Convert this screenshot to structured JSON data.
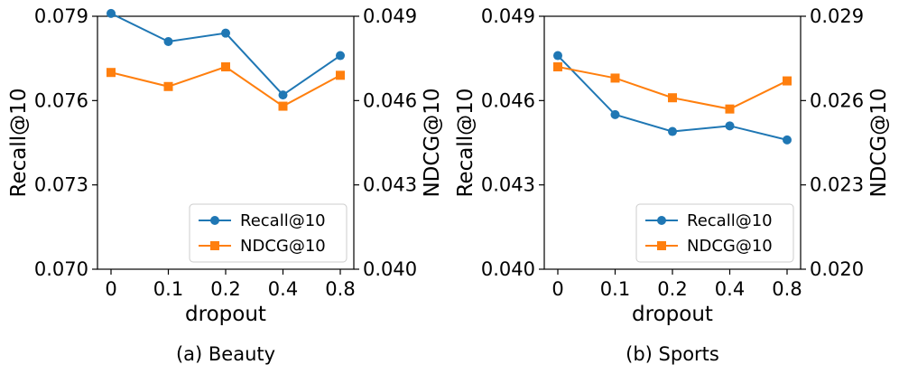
{
  "chart_data": [
    {
      "type": "line",
      "caption": "(a) Beauty",
      "xlabel": "dropout",
      "ylabel_left": "Recall@10",
      "ylabel_right": "NDCG@10",
      "categories": [
        "0",
        "0.1",
        "0.2",
        "0.4",
        "0.8"
      ],
      "ylim_left": [
        0.07,
        0.079
      ],
      "yticks_left": [
        "0.070",
        "0.073",
        "0.076",
        "0.079"
      ],
      "ylim_right": [
        0.04,
        0.049
      ],
      "yticks_right": [
        "0.040",
        "0.043",
        "0.046",
        "0.049"
      ],
      "series": [
        {
          "name": "Recall@10",
          "axis": "left",
          "marker": "circle",
          "color": "#1f77b4",
          "values": [
            0.0791,
            0.0781,
            0.0784,
            0.0762,
            0.0776
          ]
        },
        {
          "name": "NDCG@10",
          "axis": "right",
          "marker": "square",
          "color": "#ff7f0e",
          "values": [
            0.047,
            0.0465,
            0.0472,
            0.0458,
            0.0469
          ]
        }
      ],
      "legend": "bottom-right"
    },
    {
      "type": "line",
      "caption": "(b) Sports",
      "xlabel": "dropout",
      "ylabel_left": "Recall@10",
      "ylabel_right": "NDCG@10",
      "categories": [
        "0",
        "0.1",
        "0.2",
        "0.4",
        "0.8"
      ],
      "ylim_left": [
        0.04,
        0.049
      ],
      "yticks_left": [
        "0.040",
        "0.043",
        "0.046",
        "0.049"
      ],
      "ylim_right": [
        0.02,
        0.029
      ],
      "yticks_right": [
        "0.020",
        "0.023",
        "0.026",
        "0.029"
      ],
      "series": [
        {
          "name": "Recall@10",
          "axis": "left",
          "marker": "circle",
          "color": "#1f77b4",
          "values": [
            0.0476,
            0.0455,
            0.0449,
            0.0451,
            0.0446
          ]
        },
        {
          "name": "NDCG@10",
          "axis": "right",
          "marker": "square",
          "color": "#ff7f0e",
          "values": [
            0.0272,
            0.0268,
            0.0261,
            0.0257,
            0.0267
          ]
        }
      ],
      "legend": "bottom-right"
    }
  ]
}
